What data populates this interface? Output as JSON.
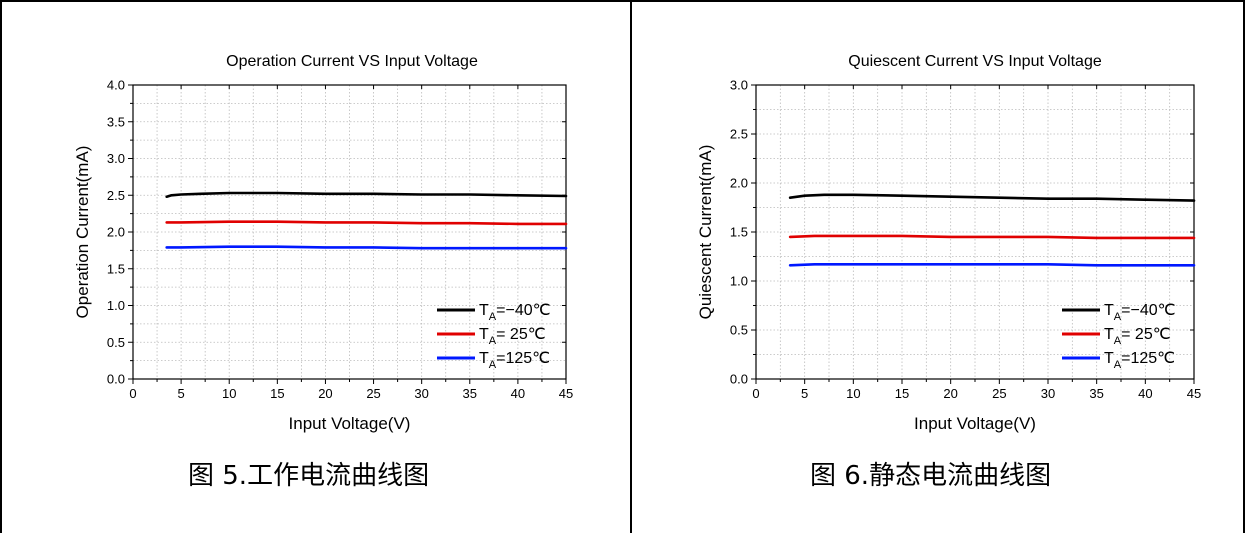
{
  "colors": {
    "black": "#000000",
    "red": "#e00000",
    "blue": "#0018ff",
    "grid": "#bbbbbb"
  },
  "figures": [
    {
      "caption": "图 5.工作电流曲线图",
      "chart_data": {
        "type": "line",
        "title": "Operation Current VS Input Voltage",
        "xlabel": "Input Voltage(V)",
        "ylabel": "Operation Current(mA)",
        "xlim": [
          0,
          45
        ],
        "ylim": [
          0,
          4.0
        ],
        "xticks": [
          0,
          5,
          10,
          15,
          20,
          25,
          30,
          35,
          40,
          45
        ],
        "yticks": [
          0.0,
          0.5,
          1.0,
          1.5,
          2.0,
          2.5,
          3.0,
          3.5,
          4.0
        ],
        "ytick_labels": [
          "0.0",
          "0.5",
          "1.0",
          "1.5",
          "2.0",
          "2.5",
          "3.0",
          "3.5",
          "4.0"
        ],
        "grid": true,
        "legend_position": "bottom-right",
        "series": [
          {
            "name": "T_A=−40℃",
            "label_main": "T",
            "label_sub": "A",
            "label_rest": "=−40℃",
            "color": "#000000",
            "x": [
              3.5,
              4,
              5,
              7,
              10,
              15,
              20,
              25,
              30,
              35,
              40,
              45
            ],
            "y": [
              2.48,
              2.5,
              2.51,
              2.52,
              2.53,
              2.53,
              2.52,
              2.52,
              2.51,
              2.51,
              2.5,
              2.49
            ]
          },
          {
            "name": "T_A= 25℃",
            "label_main": "T",
            "label_sub": "A",
            "label_rest": "= 25℃",
            "color": "#e00000",
            "x": [
              3.5,
              5,
              10,
              15,
              20,
              25,
              30,
              35,
              40,
              45
            ],
            "y": [
              2.13,
              2.13,
              2.14,
              2.14,
              2.13,
              2.13,
              2.12,
              2.12,
              2.11,
              2.11
            ]
          },
          {
            "name": "T_A=125℃",
            "label_main": "T",
            "label_sub": "A",
            "label_rest": "=125℃",
            "color": "#0018ff",
            "x": [
              3.5,
              5,
              10,
              15,
              20,
              25,
              30,
              35,
              40,
              45
            ],
            "y": [
              1.79,
              1.79,
              1.8,
              1.8,
              1.79,
              1.79,
              1.78,
              1.78,
              1.78,
              1.78
            ]
          }
        ]
      }
    },
    {
      "caption": "图 6.静态电流曲线图",
      "chart_data": {
        "type": "line",
        "title": "Quiescent Current VS Input Voltage",
        "xlabel": "Input Voltage(V)",
        "ylabel": "Quiescent Current(mA)",
        "xlim": [
          0,
          45
        ],
        "ylim": [
          0,
          3.0
        ],
        "xticks": [
          0,
          5,
          10,
          15,
          20,
          25,
          30,
          35,
          40,
          45
        ],
        "yticks": [
          0.0,
          0.5,
          1.0,
          1.5,
          2.0,
          2.5,
          3.0
        ],
        "ytick_labels": [
          "0.0",
          "0.5",
          "1.0",
          "1.5",
          "2.0",
          "2.5",
          "3.0"
        ],
        "grid": true,
        "legend_position": "bottom-right",
        "series": [
          {
            "name": "T_A=−40℃",
            "label_main": "T",
            "label_sub": "A",
            "label_rest": "=−40℃",
            "color": "#000000",
            "x": [
              3.5,
              5,
              7,
              10,
              15,
              20,
              25,
              30,
              35,
              40,
              45
            ],
            "y": [
              1.85,
              1.87,
              1.88,
              1.88,
              1.87,
              1.86,
              1.85,
              1.84,
              1.84,
              1.83,
              1.82
            ]
          },
          {
            "name": "T_A= 25℃",
            "label_main": "T",
            "label_sub": "A",
            "label_rest": "= 25℃",
            "color": "#e00000",
            "x": [
              3.5,
              6,
              10,
              15,
              20,
              25,
              30,
              35,
              40,
              45
            ],
            "y": [
              1.45,
              1.46,
              1.46,
              1.46,
              1.45,
              1.45,
              1.45,
              1.44,
              1.44,
              1.44
            ]
          },
          {
            "name": "T_A=125℃",
            "label_main": "T",
            "label_sub": "A",
            "label_rest": "=125℃",
            "color": "#0018ff",
            "x": [
              3.5,
              6,
              10,
              15,
              20,
              25,
              30,
              35,
              40,
              45
            ],
            "y": [
              1.16,
              1.17,
              1.17,
              1.17,
              1.17,
              1.17,
              1.17,
              1.16,
              1.16,
              1.16
            ]
          }
        ]
      }
    }
  ]
}
